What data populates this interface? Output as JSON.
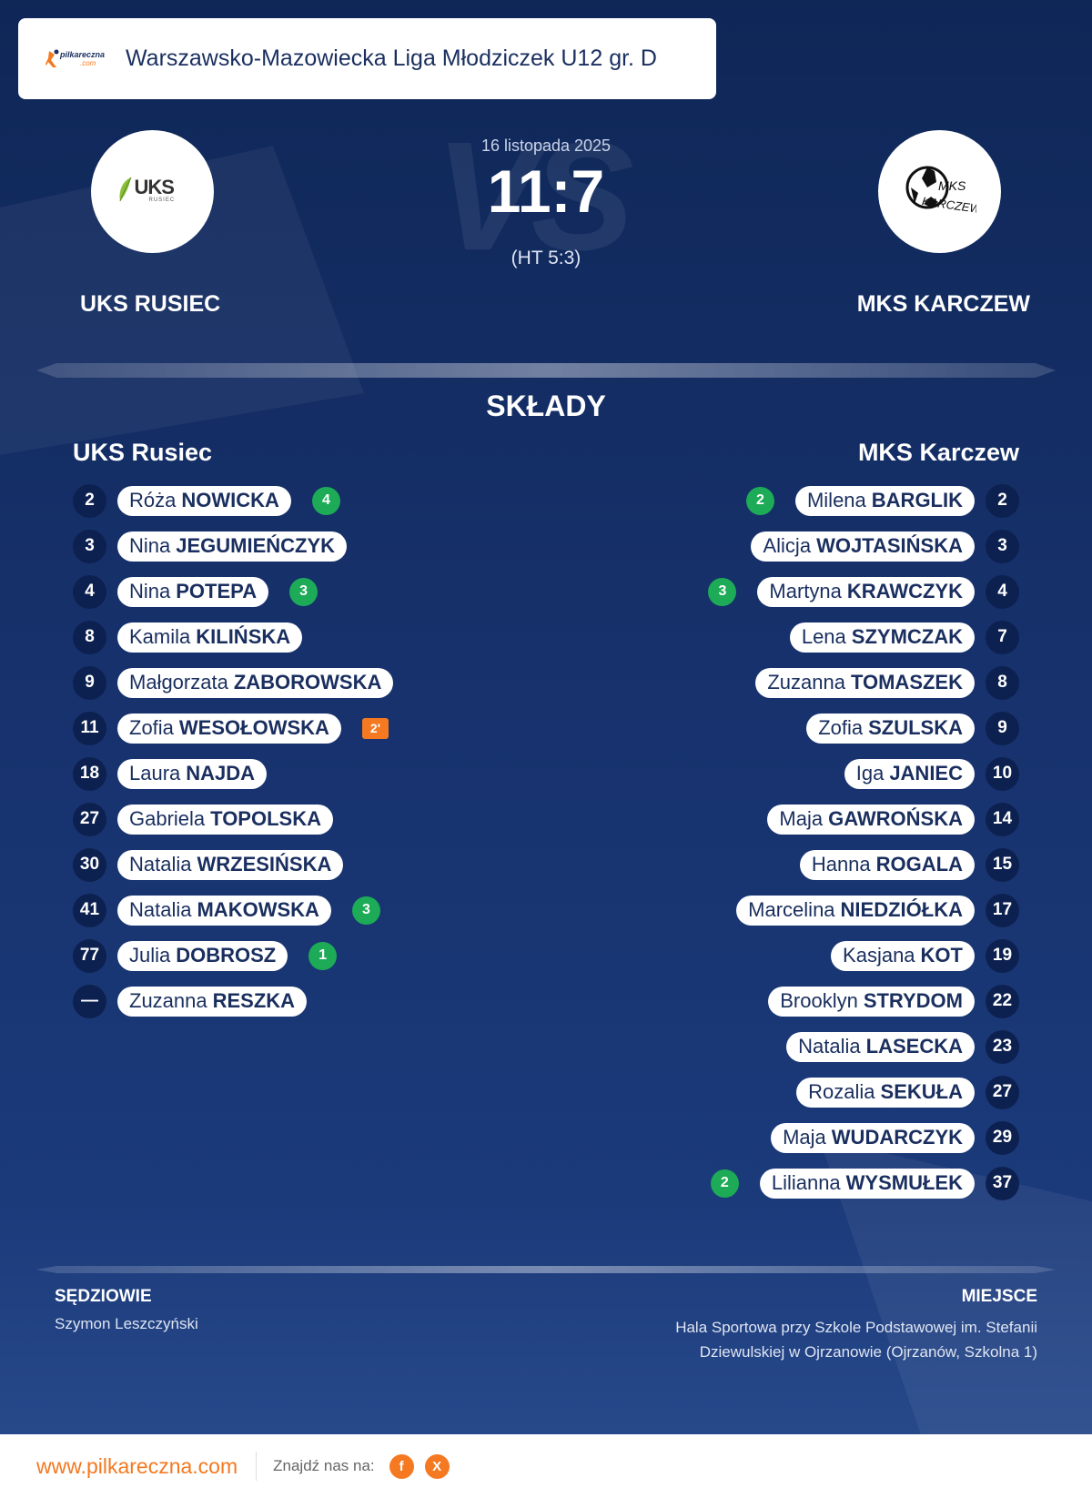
{
  "header": {
    "brand_top": "pilkareczna",
    "brand_bottom": ".com",
    "league": "Warszawsko-Mazowiecka Liga Młodziczek U12 gr. D"
  },
  "match": {
    "vs_watermark": "VS",
    "date": "16 listopada 2025",
    "score": "11:7",
    "half_time": "(HT 5:3)"
  },
  "home": {
    "name": "UKS RUSIEC",
    "logo_text_main": "UKS",
    "logo_text_sub": "RUSIEC",
    "squad_title": "UKS Rusiec",
    "players": [
      {
        "number": "2",
        "first": "Róża",
        "last": "NOWICKA",
        "goals": "4"
      },
      {
        "number": "3",
        "first": "Nina",
        "last": "JEGUMIEŃCZYK"
      },
      {
        "number": "4",
        "first": "Nina",
        "last": "POTEPA",
        "goals": "3"
      },
      {
        "number": "8",
        "first": "Kamila",
        "last": "KILIŃSKA"
      },
      {
        "number": "9",
        "first": "Małgorzata",
        "last": "ZABOROWSKA"
      },
      {
        "number": "11",
        "first": "Zofia",
        "last": "WESOŁOWSKA",
        "penalty": "2'"
      },
      {
        "number": "18",
        "first": "Laura",
        "last": "NAJDA"
      },
      {
        "number": "27",
        "first": "Gabriela",
        "last": "TOPOLSKA"
      },
      {
        "number": "30",
        "first": "Natalia",
        "last": "WRZESIŃSKA"
      },
      {
        "number": "41",
        "first": "Natalia",
        "last": "MAKOWSKA",
        "goals": "3"
      },
      {
        "number": "77",
        "first": "Julia",
        "last": "DOBROSZ",
        "goals": "1"
      },
      {
        "number": "—",
        "first": "Zuzanna",
        "last": "RESZKA"
      }
    ]
  },
  "away": {
    "name": "MKS KARCZEW",
    "logo_text_main": "MKS",
    "logo_text_sub": "KARCZEW",
    "squad_title": "MKS Karczew",
    "players": [
      {
        "number": "2",
        "first": "Milena",
        "last": "BARGLIK",
        "goals": "2"
      },
      {
        "number": "3",
        "first": "Alicja",
        "last": "WOJTASIŃSKA"
      },
      {
        "number": "4",
        "first": "Martyna",
        "last": "KRAWCZYK",
        "goals": "3"
      },
      {
        "number": "7",
        "first": "Lena",
        "last": "SZYMCZAK"
      },
      {
        "number": "8",
        "first": "Zuzanna",
        "last": "TOMASZEK"
      },
      {
        "number": "9",
        "first": "Zofia",
        "last": "SZULSKA"
      },
      {
        "number": "10",
        "first": "Iga",
        "last": "JANIEC"
      },
      {
        "number": "14",
        "first": "Maja",
        "last": "GAWROŃSKA"
      },
      {
        "number": "15",
        "first": "Hanna",
        "last": "ROGALA"
      },
      {
        "number": "17",
        "first": "Marcelina",
        "last": "NIEDZIÓŁKA"
      },
      {
        "number": "19",
        "first": "Kasjana",
        "last": "KOT"
      },
      {
        "number": "22",
        "first": "Brooklyn",
        "last": "STRYDOM"
      },
      {
        "number": "23",
        "first": "Natalia",
        "last": "LASECKA"
      },
      {
        "number": "27",
        "first": "Rozalia",
        "last": "SEKUŁA"
      },
      {
        "number": "29",
        "first": "Maja",
        "last": "WUDARCZYK"
      },
      {
        "number": "37",
        "first": "Lilianna",
        "last": "WYSMUŁEK",
        "goals": "2"
      }
    ]
  },
  "squads_title": "SKŁADY",
  "referees": {
    "label": "SĘDZIOWIE",
    "names": "Szymon Leszczyński"
  },
  "venue": {
    "label": "MIEJSCE",
    "text": "Hala Sportowa przy Szkole Podstawowej im. Stefanii Dziewulskiej w Ojrzanowie (Ojrzanów, Szkolna 1)"
  },
  "footer": {
    "url": "www.pilkareczna.com",
    "find_us": "Znajdź nas na:",
    "social": [
      {
        "icon": "facebook-icon",
        "glyph": "f"
      },
      {
        "icon": "x-icon",
        "glyph": "X"
      }
    ]
  },
  "colors": {
    "accent": "#f47920",
    "goal_badge": "#1dab57",
    "navy": "#1a2f5f",
    "number_badge": "#0d2150"
  }
}
